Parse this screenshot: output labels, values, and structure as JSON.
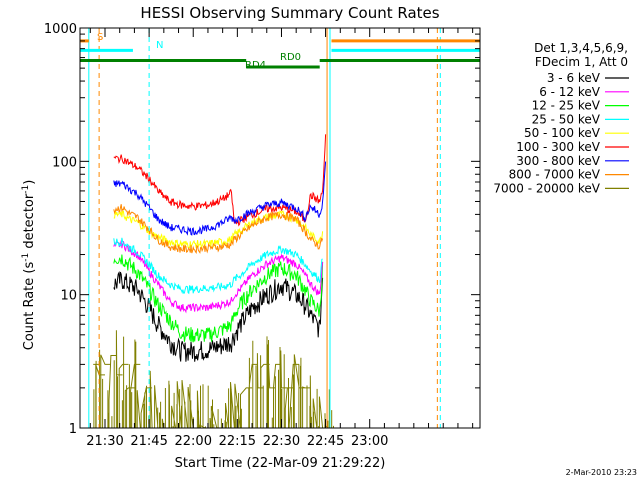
{
  "chart_data": {
    "type": "line",
    "title": "HESSI Observing Summary Count Rates",
    "xlabel": "Start Time (22-Mar-09 21:29:22)",
    "ylabel_parts": [
      "Count Rate (s",
      "-1",
      " detector",
      "-1",
      ")"
    ],
    "ylabel": "Count Rate (s^-1 detector^-1)",
    "yscale": "log",
    "ylim": [
      1,
      1000
    ],
    "xlim_minutes": [
      21.5,
      157.5
    ],
    "x_tick_labels": [
      "21:30",
      "21:45",
      "22:00",
      "22:15",
      "22:30",
      "22:45",
      "23:00"
    ],
    "x_tick_minutes": [
      30,
      45,
      60,
      75,
      90,
      105,
      120
    ],
    "y_tick_labels": [
      "1",
      "10",
      "100",
      "1000"
    ],
    "y_tick_values": [
      1,
      10,
      100,
      1000
    ],
    "legend_header": [
      "Det 1,3,4,5,6,9,",
      "FDecim 1, Att 0"
    ],
    "legend_position": "top-right",
    "timestamp": "2-Mar-2010 23:23",
    "series": [
      {
        "name": "3 - 6 keV",
        "color": "#000000",
        "x": [
          33,
          36,
          38,
          41,
          45,
          48,
          52,
          56,
          60,
          65,
          70,
          73,
          74,
          76,
          80,
          85,
          90,
          95,
          98,
          100,
          103,
          104
        ],
        "y": [
          12,
          13,
          12,
          11,
          8,
          6,
          4.5,
          3.8,
          3.8,
          3.9,
          4.2,
          4.5,
          5,
          6,
          8,
          10,
          12,
          10,
          8.5,
          7,
          5.5,
          14
        ]
      },
      {
        "name": "6 - 12 keV",
        "color": "#ff00ff",
        "x": [
          33,
          36,
          38,
          41,
          45,
          48,
          52,
          56,
          60,
          65,
          70,
          73,
          74,
          76,
          80,
          85,
          90,
          95,
          98,
          100,
          103,
          104
        ],
        "y": [
          23,
          24,
          22,
          20,
          15,
          12,
          9,
          8,
          8,
          8,
          8.5,
          9,
          10,
          11,
          14,
          17,
          19,
          17,
          14,
          12,
          10,
          18
        ]
      },
      {
        "name": "12 - 25 keV",
        "color": "#00ff00",
        "x": [
          33,
          36,
          38,
          41,
          45,
          48,
          52,
          56,
          60,
          65,
          70,
          73,
          74,
          76,
          80,
          85,
          90,
          95,
          98,
          100,
          103,
          104
        ],
        "y": [
          19,
          19,
          17,
          15,
          11,
          8.5,
          6.5,
          5.2,
          5,
          5,
          5.5,
          6,
          7,
          8.5,
          11,
          14,
          16,
          14,
          11,
          9,
          7.5,
          16
        ]
      },
      {
        "name": "25 - 50 keV",
        "color": "#00ffff",
        "x": [
          33,
          36,
          38,
          41,
          45,
          48,
          52,
          56,
          60,
          65,
          70,
          73,
          74,
          76,
          80,
          85,
          90,
          95,
          98,
          100,
          103,
          104
        ],
        "y": [
          25,
          25,
          23,
          21,
          17,
          14,
          12,
          11,
          11,
          11.2,
          11.5,
          12,
          13,
          14,
          17,
          20,
          22,
          20,
          17,
          15,
          13,
          19
        ]
      },
      {
        "name": "50 - 100 keV",
        "color": "#ffff00",
        "x": [
          33,
          36,
          38,
          41,
          45,
          48,
          52,
          56,
          60,
          65,
          70,
          73,
          74,
          76,
          80,
          85,
          90,
          95,
          98,
          100,
          103,
          104
        ],
        "y": [
          40,
          40,
          37,
          35,
          30,
          27,
          25,
          24,
          24,
          24,
          25,
          26,
          28,
          30,
          35,
          38,
          40,
          37,
          32,
          28,
          25,
          30
        ]
      },
      {
        "name": "100 - 300 keV",
        "color": "#ff0000",
        "x": [
          33,
          36,
          38,
          41,
          45,
          48,
          52,
          56,
          60,
          65,
          70,
          73,
          74,
          76,
          80,
          85,
          90,
          95,
          98,
          100,
          103,
          104,
          105
        ],
        "y": [
          105,
          105,
          98,
          90,
          74,
          60,
          50,
          47,
          46,
          47,
          52,
          58,
          34,
          36,
          40,
          44,
          45,
          42,
          36,
          56,
          50,
          60,
          150
        ]
      },
      {
        "name": "300 - 800 keV",
        "color": "#0000ff",
        "x": [
          33,
          36,
          38,
          41,
          45,
          48,
          52,
          56,
          60,
          65,
          70,
          73,
          74,
          76,
          80,
          85,
          90,
          95,
          98,
          100,
          103,
          104,
          105
        ],
        "y": [
          68,
          68,
          63,
          57,
          45,
          37,
          32,
          31,
          30,
          31,
          35,
          38,
          36,
          38,
          42,
          47,
          49,
          45,
          38,
          46,
          40,
          50,
          95
        ]
      },
      {
        "name": "800 - 7000 keV",
        "color": "#ff8800",
        "x": [
          33,
          36,
          38,
          41,
          45,
          48,
          52,
          56,
          60,
          65,
          70,
          73,
          74,
          76,
          80,
          85,
          90,
          95,
          98,
          100,
          103,
          104
        ],
        "y": [
          44,
          45,
          41,
          38,
          31,
          26,
          23,
          22,
          22,
          22.5,
          23,
          24,
          26,
          28,
          33,
          38,
          40,
          37,
          30,
          26,
          23,
          27
        ]
      },
      {
        "name": "7000 - 20000 keV",
        "color": "#808000",
        "x": [
          26,
          28,
          30,
          32,
          34,
          36,
          38,
          40,
          42,
          44,
          46,
          48,
          50,
          52,
          54,
          56,
          58,
          60,
          62,
          64,
          66,
          68,
          70,
          72,
          74,
          76,
          78,
          80,
          82,
          84,
          86,
          88,
          90,
          92,
          94,
          96,
          98,
          100,
          102,
          104,
          106
        ],
        "y": [
          3,
          2.5,
          3,
          3.5,
          2.5,
          3,
          2,
          3,
          1,
          2,
          1,
          1,
          1,
          1,
          1,
          1,
          1,
          1,
          1,
          1,
          1,
          1,
          1,
          1,
          1,
          1,
          2,
          3,
          2,
          3,
          2,
          3,
          2,
          2,
          3,
          2,
          2,
          1,
          1,
          1,
          1
        ]
      }
    ],
    "state_bars": [
      {
        "label": "S",
        "color": "#ff8800",
        "level": 800,
        "segments": [
          [
            21.5,
            24.5
          ],
          [
            107.0,
            157.5
          ]
        ]
      },
      {
        "label": "N",
        "color": "#00ffff",
        "level": 680,
        "segments": [
          [
            21.5,
            39.5
          ],
          [
            107.0,
            157.5
          ]
        ]
      },
      {
        "label": "RD0",
        "color": "#008000",
        "level": 570,
        "segments": [
          [
            21.5,
            78.0
          ],
          [
            103.0,
            157.5
          ]
        ]
      },
      {
        "label": "RD4",
        "color": "#008000",
        "level": 510,
        "segments": [
          [
            78.0,
            103.0
          ]
        ]
      }
    ],
    "vertical_markers": [
      {
        "minute": 24.5,
        "color": "#00ffff",
        "style": "solid"
      },
      {
        "minute": 28.0,
        "color": "#ff8800",
        "style": "dashed"
      },
      {
        "minute": 45.0,
        "color": "#00ffff",
        "style": "dashed"
      },
      {
        "minute": 105.5,
        "color": "#ff8800",
        "style": "solid"
      },
      {
        "minute": 106.5,
        "color": "#00ffff",
        "style": "solid"
      },
      {
        "minute": 143.0,
        "color": "#ff8800",
        "style": "dashed"
      },
      {
        "minute": 144.0,
        "color": "#00ffff",
        "style": "dashed"
      }
    ]
  }
}
